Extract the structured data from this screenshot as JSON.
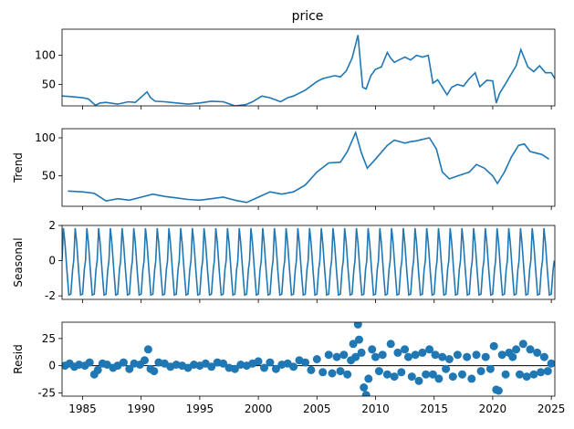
{
  "chart_data": [
    {
      "type": "line",
      "title": "price",
      "ylabel": "",
      "xlim": [
        1983.25,
        2025.3
      ],
      "ylim": [
        13,
        145
      ],
      "yticks": [
        50,
        100
      ],
      "grid": false,
      "series": [
        {
          "x": [
            1983.25,
            1984,
            1985,
            1985.5,
            1986.1,
            1986.5,
            1987,
            1988,
            1988.9,
            1989.5,
            1990.5,
            1990.8,
            1991.2,
            1992,
            1993,
            1994,
            1995,
            1996,
            1997,
            1998,
            1998.9,
            1999.5,
            2000.3,
            2001,
            2001.9,
            2002.5,
            2003,
            2004,
            2005,
            2005.5,
            2006.5,
            2007,
            2007.5,
            2008,
            2008.5,
            2008.9,
            2009.2,
            2009.6,
            2010,
            2010.5,
            2011,
            2011.3,
            2011.6,
            2012,
            2012.5,
            2013,
            2013.5,
            2014,
            2014.5,
            2014.9,
            2015.3,
            2015.7,
            2016.1,
            2016.5,
            2017,
            2017.5,
            2018,
            2018.5,
            2018.9,
            2019.5,
            2020,
            2020.3,
            2020.6,
            2021,
            2021.5,
            2022,
            2022.4,
            2022.8,
            2023,
            2023.5,
            2024,
            2024.5,
            2025,
            2025.3
          ],
          "y": [
            30,
            29,
            27,
            25,
            14,
            18,
            19,
            16,
            20,
            19,
            37,
            27,
            21,
            20,
            18,
            16,
            18,
            21,
            20,
            13,
            15,
            20,
            30,
            27,
            20,
            27,
            30,
            40,
            55,
            60,
            65,
            63,
            73,
            95,
            135,
            45,
            42,
            65,
            76,
            80,
            105,
            95,
            88,
            92,
            97,
            92,
            100,
            97,
            100,
            52,
            58,
            45,
            32,
            45,
            50,
            47,
            60,
            70,
            46,
            57,
            56,
            18,
            35,
            48,
            65,
            82,
            110,
            90,
            80,
            72,
            82,
            70,
            70,
            60
          ]
        }
      ]
    },
    {
      "type": "line",
      "title": "",
      "ylabel": "Trend",
      "xlim": [
        1983.25,
        2025.3
      ],
      "ylim": [
        10,
        112
      ],
      "yticks": [
        50,
        100
      ],
      "grid": false,
      "series": [
        {
          "x": [
            1983.75,
            1985,
            1986,
            1987,
            1988,
            1989,
            1990,
            1991,
            1992,
            1993,
            1994,
            1995,
            1996,
            1997,
            1998,
            1999,
            2000,
            2001,
            2002,
            2003,
            2004,
            2005,
            2006,
            2007,
            2007.6,
            2008.3,
            2008.8,
            2009.3,
            2010,
            2011,
            2011.6,
            2012.5,
            2013,
            2013.5,
            2014,
            2014.6,
            2015.2,
            2015.7,
            2016.3,
            2017,
            2018,
            2018.6,
            2019.3,
            2020,
            2020.4,
            2021,
            2021.6,
            2022.2,
            2022.7,
            2023.2,
            2023.7,
            2024.2,
            2024.8
          ],
          "y": [
            30,
            29,
            27,
            17,
            20,
            18,
            22,
            26,
            23,
            21,
            19,
            18,
            20,
            22,
            18,
            15,
            22,
            29,
            26,
            29,
            38,
            55,
            67,
            68,
            82,
            107,
            80,
            60,
            72,
            90,
            97,
            93,
            95,
            96,
            98,
            100,
            85,
            55,
            46,
            50,
            55,
            65,
            60,
            50,
            40,
            55,
            75,
            90,
            92,
            82,
            80,
            78,
            72
          ]
        }
      ]
    },
    {
      "type": "line",
      "title": "",
      "ylabel": "Seasonal",
      "xlim": [
        1983.25,
        2025.3
      ],
      "ylim": [
        -2.2,
        2
      ],
      "yticks": [
        -2,
        0,
        2
      ],
      "grid": false,
      "pattern": {
        "period_years": 1,
        "x": [
          0,
          0.12,
          0.25,
          0.42,
          0.58,
          0.75,
          0.9,
          1
        ],
        "y": [
          0,
          1.85,
          1.0,
          -0.6,
          -1.95,
          -1.9,
          -0.5,
          0
        ]
      },
      "series": [
        {
          "x_start": 1983.25,
          "x_end": 2025.3
        }
      ]
    },
    {
      "type": "scatter",
      "title": "",
      "ylabel": "Resid",
      "xlim": [
        1983.25,
        2025.3
      ],
      "ylim": [
        -28,
        40
      ],
      "yticks": [
        -25,
        0,
        25
      ],
      "xticks": [
        1985,
        1990,
        1995,
        2000,
        2005,
        2010,
        2015,
        2020,
        2025
      ],
      "grid": false,
      "baseline": 0,
      "series": [
        {
          "x": [
            1983.5,
            1983.9,
            1984.3,
            1984.7,
            1985.2,
            1985.6,
            1986,
            1986.3,
            1986.7,
            1987.1,
            1987.6,
            1988,
            1988.5,
            1989,
            1989.4,
            1989.9,
            1990.3,
            1990.6,
            1990.8,
            1991.1,
            1991.5,
            1992,
            1992.5,
            1993,
            1993.5,
            1994,
            1994.5,
            1995,
            1995.5,
            1996,
            1996.5,
            1997,
            1997.5,
            1998,
            1998.5,
            1999,
            1999.5,
            2000,
            2000.5,
            2001,
            2001.5,
            2002,
            2002.5,
            2003,
            2003.5,
            2004,
            2004.5,
            2005,
            2005.5,
            2006,
            2006.3,
            2006.7,
            2007,
            2007.3,
            2007.6,
            2007.9,
            2008.1,
            2008.3,
            2008.5,
            2008.6,
            2008.8,
            2009,
            2009.2,
            2009.4,
            2009.7,
            2010,
            2010.3,
            2010.6,
            2011,
            2011.3,
            2011.6,
            2011.9,
            2012.2,
            2012.5,
            2012.8,
            2013.1,
            2013.4,
            2013.7,
            2014,
            2014.3,
            2014.6,
            2014.9,
            2015.1,
            2015.4,
            2015.7,
            2016,
            2016.3,
            2016.6,
            2017,
            2017.4,
            2017.8,
            2018.2,
            2018.6,
            2019,
            2019.4,
            2019.8,
            2020.1,
            2020.3,
            2020.5,
            2020.8,
            2021.1,
            2021.4,
            2021.7,
            2022,
            2022.3,
            2022.6,
            2022.9,
            2023.2,
            2023.5,
            2023.8,
            2024.1,
            2024.4,
            2024.7,
            2025
          ],
          "y": [
            0,
            2,
            -1,
            1,
            0,
            3,
            -8,
            -4,
            2,
            1,
            -2,
            0,
            3,
            -3,
            2,
            1,
            5,
            15,
            -3,
            -5,
            3,
            2,
            -1,
            1,
            0,
            -2,
            1,
            0,
            2,
            -1,
            3,
            2,
            -2,
            -3,
            1,
            0,
            2,
            4,
            -2,
            3,
            -3,
            1,
            2,
            -1,
            5,
            3,
            -4,
            6,
            -6,
            10,
            -7,
            8,
            -5,
            10,
            -8,
            5,
            20,
            8,
            38,
            24,
            12,
            -20,
            -27,
            -12,
            15,
            8,
            -5,
            10,
            -8,
            20,
            -10,
            12,
            -6,
            15,
            8,
            -10,
            10,
            -14,
            12,
            -8,
            15,
            -8,
            10,
            -12,
            8,
            -3,
            6,
            -10,
            10,
            -8,
            8,
            -12,
            10,
            -5,
            8,
            -3,
            18,
            -22,
            -23,
            10,
            -8,
            12,
            8,
            15,
            -8,
            20,
            -10,
            15,
            -8,
            12,
            -6,
            8,
            -5,
            2
          ]
        }
      ]
    }
  ]
}
